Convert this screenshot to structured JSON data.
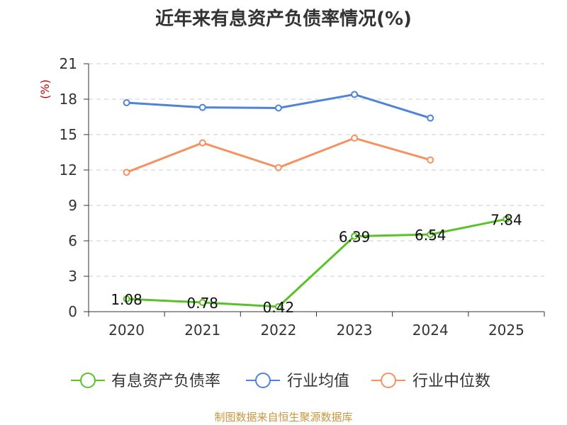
{
  "chart_data": {
    "type": "line",
    "title": "近年来有息资产负债率情况(%)",
    "ylabel": "(%)",
    "xlabel": "",
    "ylim": [
      0,
      21
    ],
    "yticks": [
      0,
      3,
      6,
      9,
      12,
      15,
      18,
      21
    ],
    "categories": [
      "2020",
      "2021",
      "2022",
      "2023",
      "2024",
      "2025"
    ],
    "grid": true,
    "legend_position": "bottom",
    "series": [
      {
        "name": "有息资产负债率",
        "color": "#5ac229",
        "values": [
          1.08,
          0.78,
          0.42,
          6.39,
          6.54,
          7.84
        ],
        "labels": [
          "1.08",
          "0.78",
          "0.42",
          "6.39",
          "6.54",
          "7.84"
        ]
      },
      {
        "name": "行业均值",
        "color": "#4f83d7",
        "values": [
          17.7,
          17.3,
          17.25,
          18.4,
          16.4,
          null
        ]
      },
      {
        "name": "行业中位数",
        "color": "#f59261",
        "values": [
          11.8,
          14.3,
          12.2,
          14.7,
          12.85,
          null
        ]
      }
    ],
    "source": "制图数据来自恒生聚源数据库",
    "ylabel_color": "#cc0000",
    "source_color": "#c8963e"
  }
}
